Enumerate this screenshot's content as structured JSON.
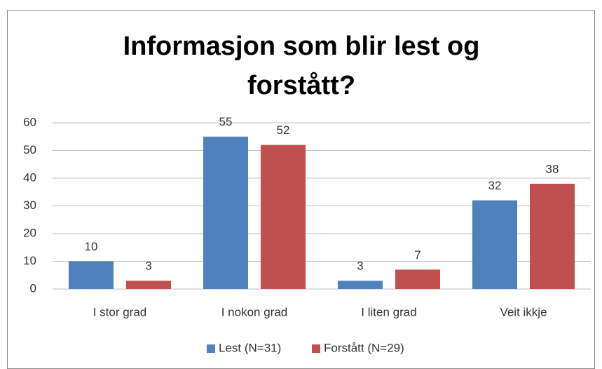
{
  "chart_data": {
    "type": "bar",
    "title": "Informasjon som blir lest og forstått?",
    "categories": [
      "I stor grad",
      "I nokon grad",
      "I liten grad",
      "Veit ikkje"
    ],
    "series": [
      {
        "name": "Lest (N=31)",
        "color": "#4f81bd",
        "values": [
          10,
          55,
          3,
          32
        ]
      },
      {
        "name": "Forstått (N=29)",
        "color": "#c0504d",
        "values": [
          3,
          52,
          7,
          38
        ]
      }
    ],
    "ylim": [
      0,
      60
    ],
    "yticks": [
      0,
      10,
      20,
      30,
      40,
      50,
      60
    ],
    "grid": true,
    "legend": "bottom"
  }
}
